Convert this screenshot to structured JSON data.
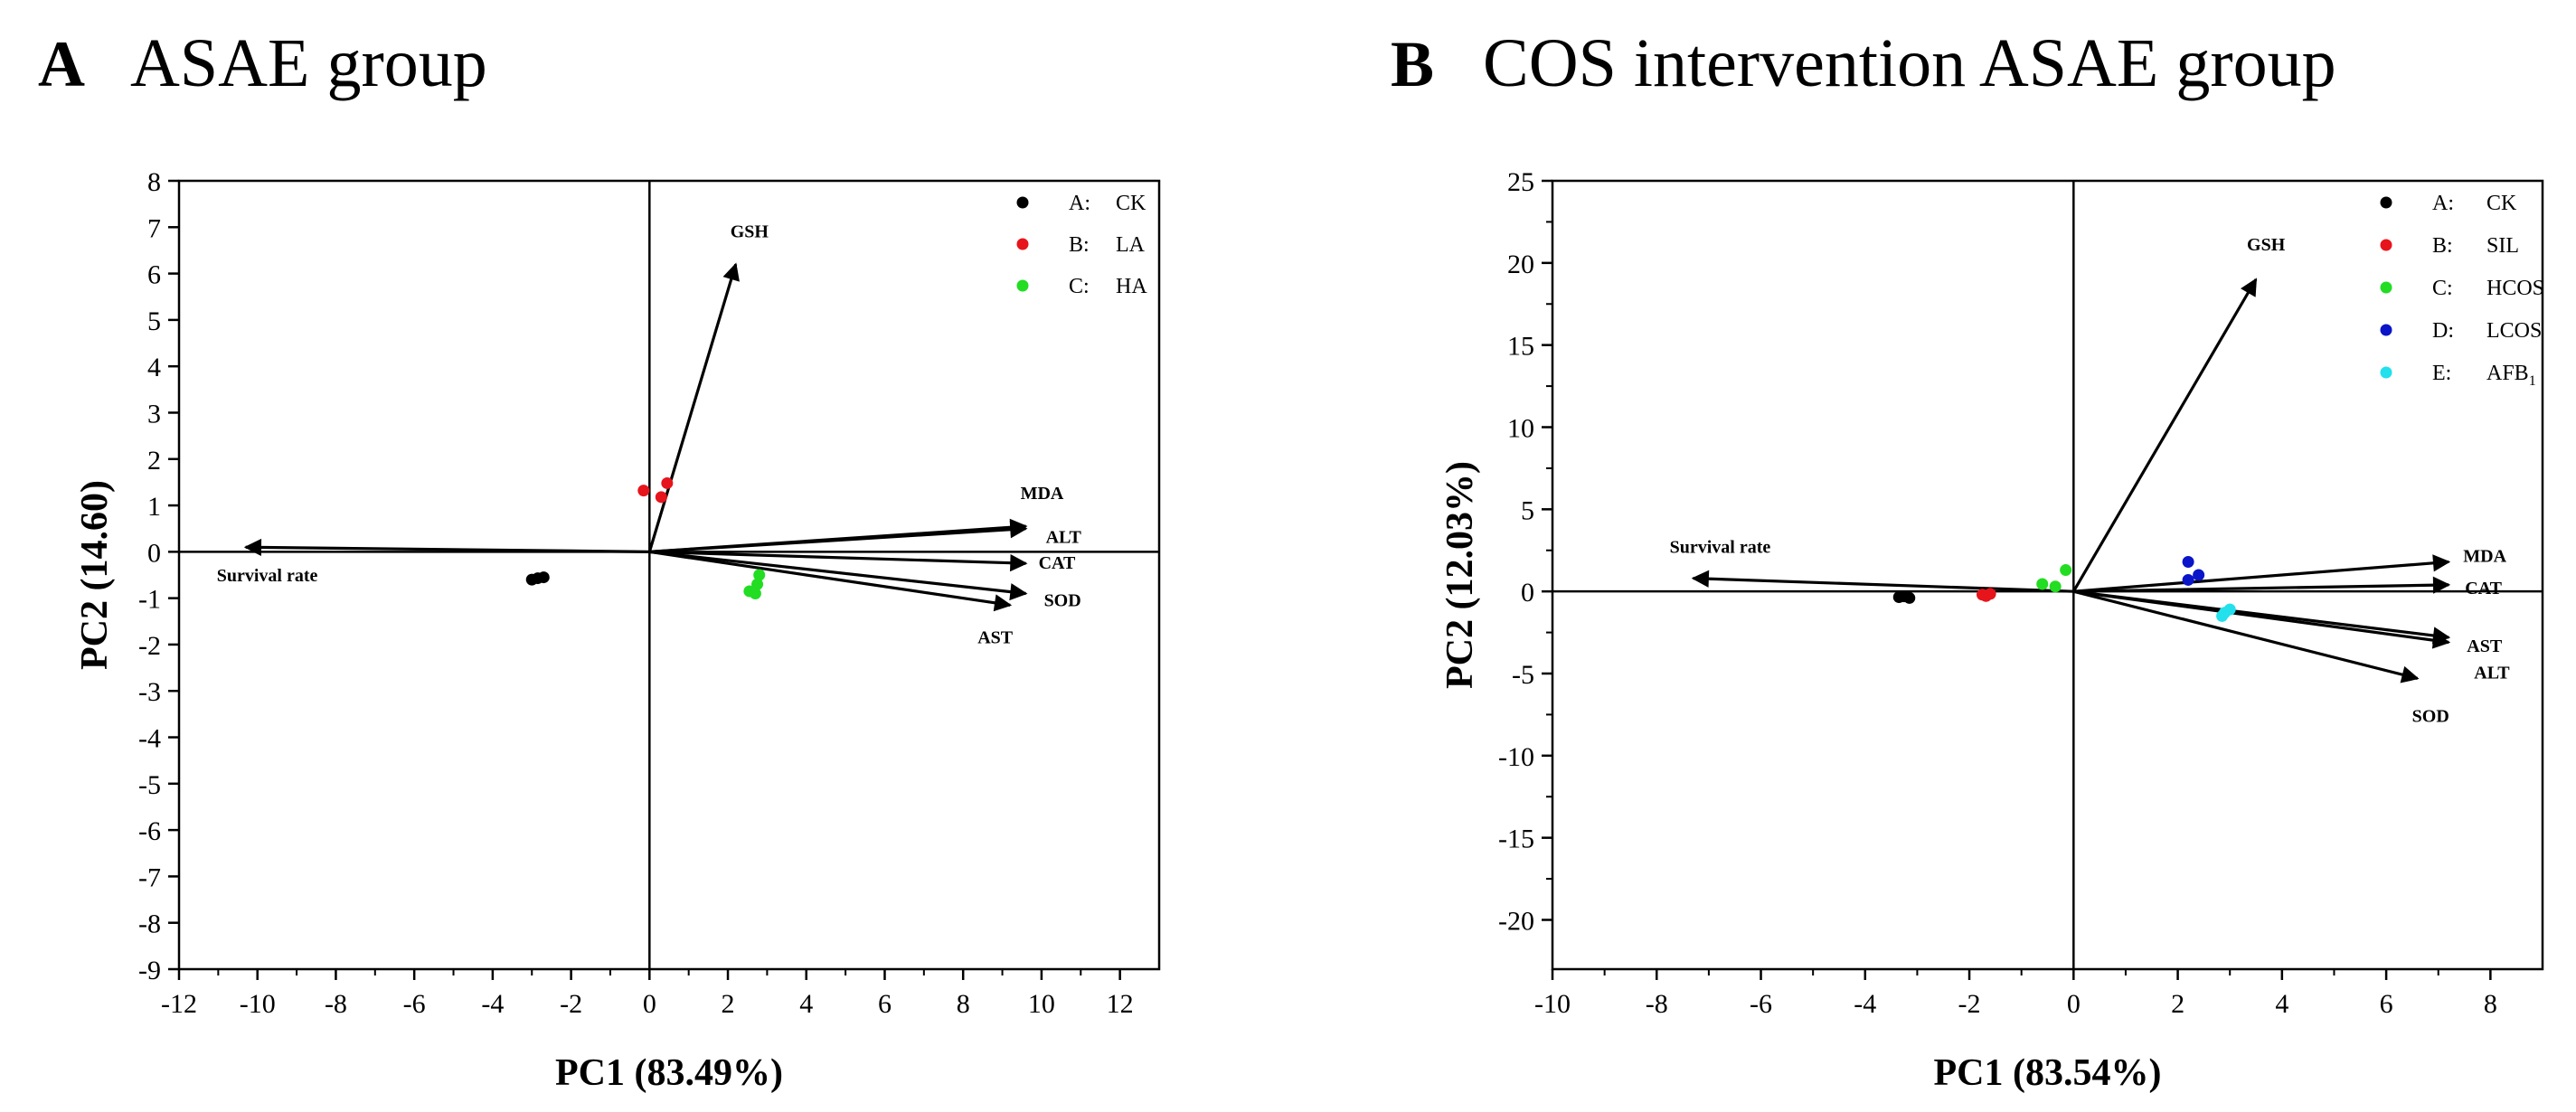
{
  "chart_data": [
    {
      "type": "scatter",
      "panel_letter": "A",
      "title": "ASAE group",
      "xlabel": "PC1 (83.49%)",
      "ylabel": "PC2 (14.60)",
      "xlim": [
        -12,
        13
      ],
      "ylim": [
        -9,
        8
      ],
      "xticks": [
        -12,
        -10,
        -8,
        -6,
        -4,
        -2,
        0,
        2,
        4,
        6,
        8,
        10,
        12
      ],
      "yticks": [
        8,
        7,
        6,
        5,
        4,
        3,
        2,
        1,
        0,
        -1,
        -2,
        -3,
        -4,
        -5,
        -6,
        -7,
        -8,
        -9
      ],
      "grid": false,
      "legend_position": "top-right",
      "series": [
        {
          "prefix": "A:",
          "name": "CK",
          "color": "#000000",
          "points": [
            [
              -3.0,
              -0.6
            ],
            [
              -2.85,
              -0.57
            ],
            [
              -2.7,
              -0.55
            ]
          ]
        },
        {
          "prefix": "B:",
          "name": "LA",
          "color": "#e8141b",
          "points": [
            [
              -0.15,
              1.32
            ],
            [
              0.45,
              1.48
            ],
            [
              0.3,
              1.18
            ]
          ]
        },
        {
          "prefix": "C:",
          "name": "HA",
          "color": "#22dd22",
          "points": [
            [
              2.55,
              -0.85
            ],
            [
              2.7,
              -0.9
            ],
            [
              2.75,
              -0.7
            ],
            [
              2.8,
              -0.5
            ]
          ]
        }
      ],
      "loadings": [
        {
          "label": "GSH",
          "x": 2.2,
          "y": 6.2
        },
        {
          "label": "MDA",
          "x": 9.6,
          "y": 0.55
        },
        {
          "label": "ALT",
          "x": 9.6,
          "y": 0.5
        },
        {
          "label": "CAT",
          "x": 9.6,
          "y": -0.25
        },
        {
          "label": "SOD",
          "x": 9.6,
          "y": -0.9
        },
        {
          "label": "AST",
          "x": 9.2,
          "y": -1.15
        },
        {
          "label": "Survival rate",
          "x": -10.3,
          "y": 0.1
        }
      ]
    },
    {
      "type": "scatter",
      "panel_letter": "B",
      "title": "COS intervention ASAE group",
      "xlabel": "PC1 (83.54%)",
      "ylabel": "PC2 (12.03%)",
      "xlim": [
        -10,
        9
      ],
      "ylim": [
        -23,
        25
      ],
      "xticks": [
        -10,
        -8,
        -6,
        -4,
        -2,
        0,
        2,
        4,
        6,
        8
      ],
      "yticks": [
        25,
        20,
        15,
        10,
        5,
        0,
        -5,
        -10,
        -15,
        -20
      ],
      "grid": false,
      "legend_position": "top-right",
      "series": [
        {
          "prefix": "A:",
          "name": "CK",
          "color": "#000000",
          "points": [
            [
              -3.35,
              -0.35
            ],
            [
              -3.15,
              -0.4
            ],
            [
              -3.25,
              -0.3
            ]
          ]
        },
        {
          "prefix": "B:",
          "name": "SIL",
          "color": "#e8141b",
          "points": [
            [
              -1.75,
              -0.2
            ],
            [
              -1.6,
              -0.15
            ],
            [
              -1.68,
              -0.28
            ]
          ]
        },
        {
          "prefix": "C:",
          "name": "HCOS",
          "color": "#22dd22",
          "points": [
            [
              -0.6,
              0.45
            ],
            [
              -0.35,
              0.3
            ],
            [
              -0.15,
              1.3
            ]
          ]
        },
        {
          "prefix": "D:",
          "name": "LCOS",
          "color": "#0a14c8",
          "points": [
            [
              2.2,
              1.8
            ],
            [
              2.4,
              1.0
            ],
            [
              2.2,
              0.7
            ]
          ]
        },
        {
          "prefix": "E:",
          "name": "AFB",
          "name_subscript": "1",
          "color": "#22e0ec",
          "points": [
            [
              2.85,
              -1.5
            ],
            [
              3.0,
              -1.1
            ],
            [
              2.9,
              -1.3
            ]
          ]
        }
      ],
      "loadings": [
        {
          "label": "GSH",
          "x": 3.5,
          "y": 19.0
        },
        {
          "label": "MDA",
          "x": 7.2,
          "y": 1.8
        },
        {
          "label": "CAT",
          "x": 7.2,
          "y": 0.4
        },
        {
          "label": "AST",
          "x": 7.2,
          "y": -2.8
        },
        {
          "label": "ALT",
          "x": 7.2,
          "y": -3.1
        },
        {
          "label": "SOD",
          "x": 6.6,
          "y": -5.3
        },
        {
          "label": "Survival rate",
          "x": -7.3,
          "y": 0.8
        }
      ]
    }
  ]
}
